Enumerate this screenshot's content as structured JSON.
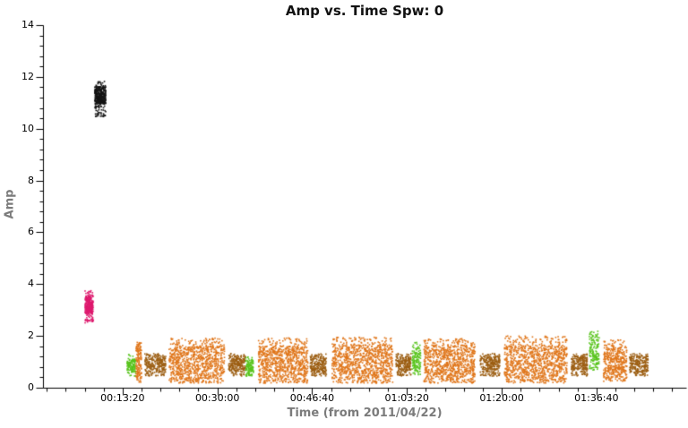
{
  "chart_data": {
    "type": "scatter",
    "title": "Amp vs. Time Spw: 0",
    "xlabel": "Time (from 2011/04/22)",
    "ylabel": "Amp",
    "ylim": [
      0,
      14
    ],
    "y_major_tick_step": 2,
    "y_minor_tick_step": 0.4,
    "t_range_seconds": [
      -40,
      6747
    ],
    "x_minor_tick_step_seconds": 200,
    "x_major_ticks": [
      {
        "seconds": 800,
        "label": "00:13:20"
      },
      {
        "seconds": 1800,
        "label": "00:30:00"
      },
      {
        "seconds": 2800,
        "label": "00:46:40"
      },
      {
        "seconds": 3800,
        "label": "01:03:20"
      },
      {
        "seconds": 4800,
        "label": "01:20:00"
      },
      {
        "seconds": 5800,
        "label": "01:36:40"
      }
    ],
    "series_colors": {
      "black": "#141414",
      "pink": "#DE1A6E",
      "orange": "#E0761A",
      "green": "#58C41C",
      "brown": "#9C5E12"
    },
    "axis_color": "#000000",
    "label_gray": "#7b7b7b",
    "background": "#ffffff",
    "clusters": [
      {
        "color": "pink",
        "t_start": 404,
        "t_end": 489,
        "amp_min": 2.5,
        "amp_core": [
          2.85,
          3.55
        ],
        "amp_max": 3.75,
        "points": 300,
        "frac": [
          0.85,
          0.1,
          0.05
        ]
      },
      {
        "color": "black",
        "t_start": 508,
        "t_end": 622,
        "amp_min": 10.45,
        "amp_core": [
          10.95,
          11.62
        ],
        "amp_max": 11.85,
        "points": 380,
        "frac": [
          0.85,
          0.1,
          0.05
        ]
      },
      {
        "color": "green",
        "t_start": 848,
        "t_end": 940,
        "amp_min": 0.45,
        "amp_core": [
          0.6,
          1.1
        ],
        "amp_max": 1.3,
        "points": 120,
        "frac": [
          0.85,
          0.1,
          0.05
        ]
      },
      {
        "color": "orange",
        "t_start": 942,
        "t_end": 1000,
        "amp_min": 0.2,
        "amp_core": [
          0.35,
          1.6
        ],
        "amp_max": 1.75,
        "points": 150,
        "frac": [
          0.9,
          0.05,
          0.05
        ]
      },
      {
        "color": "brown",
        "t_start": 1035,
        "t_end": 1255,
        "amp_min": 0.45,
        "amp_core": [
          0.6,
          1.22
        ],
        "amp_max": 1.32,
        "points": 260,
        "frac": [
          0.85,
          0.1,
          0.05
        ]
      },
      {
        "color": "orange",
        "t_start": 1290,
        "t_end": 1875,
        "amp_min": 0.18,
        "amp_core": [
          0.45,
          1.6
        ],
        "amp_max": 1.92,
        "points": 900,
        "frac": [
          0.78,
          0.14,
          0.08
        ]
      },
      {
        "color": "brown",
        "t_start": 1920,
        "t_end": 2095,
        "amp_min": 0.45,
        "amp_core": [
          0.6,
          1.22
        ],
        "amp_max": 1.32,
        "points": 230,
        "frac": [
          0.85,
          0.1,
          0.05
        ]
      },
      {
        "color": "green",
        "t_start": 2100,
        "t_end": 2180,
        "amp_min": 0.45,
        "amp_core": [
          0.55,
          1.1
        ],
        "amp_max": 1.2,
        "points": 110,
        "frac": [
          0.85,
          0.1,
          0.05
        ]
      },
      {
        "color": "orange",
        "t_start": 2235,
        "t_end": 2755,
        "amp_min": 0.18,
        "amp_core": [
          0.45,
          1.6
        ],
        "amp_max": 1.92,
        "points": 820,
        "frac": [
          0.78,
          0.14,
          0.08
        ]
      },
      {
        "color": "brown",
        "t_start": 2780,
        "t_end": 2950,
        "amp_min": 0.45,
        "amp_core": [
          0.6,
          1.22
        ],
        "amp_max": 1.32,
        "points": 225,
        "frac": [
          0.85,
          0.1,
          0.05
        ]
      },
      {
        "color": "orange",
        "t_start": 3010,
        "t_end": 3650,
        "amp_min": 0.18,
        "amp_core": [
          0.45,
          1.65
        ],
        "amp_max": 1.95,
        "points": 950,
        "frac": [
          0.78,
          0.14,
          0.08
        ]
      },
      {
        "color": "brown",
        "t_start": 3685,
        "t_end": 3845,
        "amp_min": 0.45,
        "amp_core": [
          0.6,
          1.22
        ],
        "amp_max": 1.32,
        "points": 215,
        "frac": [
          0.85,
          0.1,
          0.05
        ]
      },
      {
        "color": "green",
        "t_start": 3855,
        "t_end": 3945,
        "amp_min": 0.5,
        "amp_core": [
          0.62,
          1.45
        ],
        "amp_max": 1.75,
        "points": 130,
        "frac": [
          0.8,
          0.08,
          0.12
        ]
      },
      {
        "color": "orange",
        "t_start": 3980,
        "t_end": 4520,
        "amp_min": 0.18,
        "amp_core": [
          0.45,
          1.6
        ],
        "amp_max": 1.9,
        "points": 850,
        "frac": [
          0.78,
          0.14,
          0.08
        ]
      },
      {
        "color": "brown",
        "t_start": 4575,
        "t_end": 4780,
        "amp_min": 0.45,
        "amp_core": [
          0.6,
          1.22
        ],
        "amp_max": 1.32,
        "points": 260,
        "frac": [
          0.85,
          0.1,
          0.05
        ]
      },
      {
        "color": "orange",
        "t_start": 4830,
        "t_end": 5490,
        "amp_min": 0.18,
        "amp_core": [
          0.45,
          1.65
        ],
        "amp_max": 2.0,
        "points": 980,
        "frac": [
          0.78,
          0.14,
          0.08
        ]
      },
      {
        "color": "brown",
        "t_start": 5535,
        "t_end": 5705,
        "amp_min": 0.45,
        "amp_core": [
          0.6,
          1.22
        ],
        "amp_max": 1.32,
        "points": 225,
        "frac": [
          0.85,
          0.1,
          0.05
        ]
      },
      {
        "color": "green",
        "t_start": 5725,
        "t_end": 5830,
        "amp_min": 0.65,
        "amp_core": [
          0.75,
          1.7
        ],
        "amp_max": 2.2,
        "points": 150,
        "frac": [
          0.7,
          0.05,
          0.25
        ]
      },
      {
        "color": "orange",
        "t_start": 5875,
        "t_end": 6120,
        "amp_min": 0.25,
        "amp_core": [
          0.5,
          1.55
        ],
        "amp_max": 1.85,
        "points": 420,
        "frac": [
          0.8,
          0.12,
          0.08
        ]
      },
      {
        "color": "brown",
        "t_start": 6150,
        "t_end": 6345,
        "amp_min": 0.45,
        "amp_core": [
          0.6,
          1.22
        ],
        "amp_max": 1.32,
        "points": 250,
        "frac": [
          0.85,
          0.1,
          0.05
        ]
      }
    ]
  }
}
